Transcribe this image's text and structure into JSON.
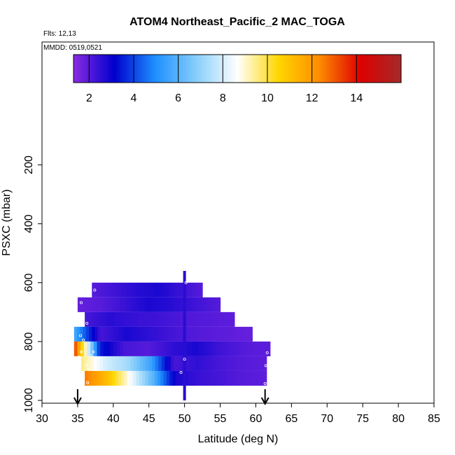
{
  "chart_data": {
    "type": "heatmap",
    "title": "ATOM4 Northeast_Pacific_2 MAC_TOGA",
    "flights_label": "Flts: 12,13",
    "mmdd_label": "MMDD: 0519,0521",
    "xlabel": "Latitude (deg N)",
    "ylabel": "PSXC (mbar)",
    "xlim": [
      30,
      85
    ],
    "ylim": [
      1000,
      0
    ],
    "x_ticks": [
      "30",
      "35",
      "40",
      "45",
      "50",
      "55",
      "60",
      "65",
      "70",
      "75",
      "80",
      "85"
    ],
    "y_ticks": [
      "200",
      "400",
      "600",
      "800",
      "1000"
    ],
    "colorbar": {
      "range": [
        1.3,
        16
      ],
      "ticks": [
        "2",
        "4",
        "6",
        "8",
        "10",
        "12",
        "14"
      ],
      "stops": [
        "#8a2be2",
        "#0000cd",
        "#1e90ff",
        "#87cefa",
        "#ffffff",
        "#ffd700",
        "#ff8c00",
        "#dd0000",
        "#a52a2a"
      ]
    },
    "rows": [
      {
        "p_top": 600,
        "p_bot": 650,
        "lat_start": 37,
        "lat_end": 52.5,
        "values": [
          2.0,
          2.3,
          2.6,
          2.8,
          2.4,
          2.0
        ]
      },
      {
        "p_top": 650,
        "p_bot": 700,
        "lat_start": 35,
        "lat_end": 55,
        "values": [
          1.8,
          2.0,
          2.4,
          2.8,
          2.6,
          2.3,
          2.0
        ]
      },
      {
        "p_top": 700,
        "p_bot": 750,
        "lat_start": 36,
        "lat_end": 57,
        "values": [
          2.2,
          2.6,
          2.4,
          2.3,
          2.1,
          2.0,
          1.9
        ]
      },
      {
        "p_top": 750,
        "p_bot": 800,
        "lat_start": 34.5,
        "lat_end": 59.5,
        "values": [
          5.5,
          2.2,
          2.8,
          2.5,
          2.2,
          2.0,
          1.9,
          1.8
        ]
      },
      {
        "p_top": 800,
        "p_bot": 850,
        "lat_start": 34.5,
        "lat_end": 62,
        "values": [
          13.0,
          3.5,
          2.2,
          2.0,
          2.5,
          2.8,
          2.3,
          2.0,
          1.9
        ]
      },
      {
        "p_top": 850,
        "p_bot": 900,
        "lat_start": 35.5,
        "lat_end": 61.5,
        "values": [
          9.5,
          8.0,
          7.2,
          5.5,
          2.2,
          2.5,
          2.2,
          2.0,
          1.9
        ]
      },
      {
        "p_top": 900,
        "p_bot": 950,
        "lat_start": 36,
        "lat_end": 61.5,
        "values": [
          12.5,
          11.0,
          8.5,
          6.0,
          2.8,
          2.4,
          2.2,
          2.0,
          1.9
        ]
      }
    ],
    "vertical_strip": {
      "lat": 50,
      "p_top": 560,
      "p_bot": 1000,
      "value": 2.6
    },
    "arrows_lat": [
      35,
      61.3
    ]
  }
}
